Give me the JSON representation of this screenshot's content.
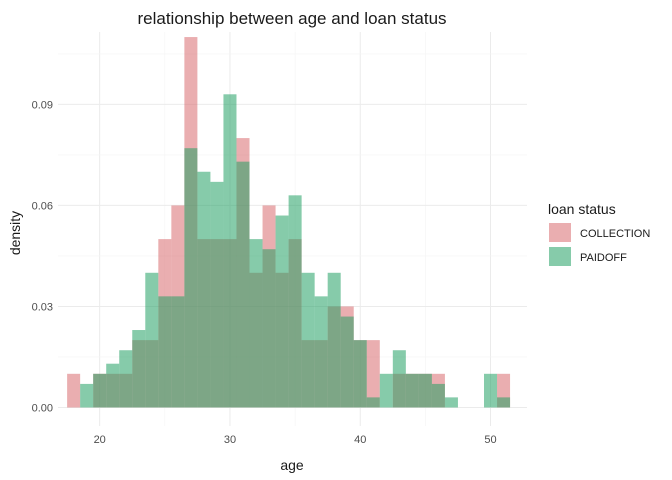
{
  "chart_data": {
    "type": "histogram",
    "title": "relationship between age and loan status",
    "xlabel": "age",
    "ylabel": "density",
    "xlim": [
      16.8,
      52.8
    ],
    "ylim": [
      -0.0055,
      0.1115
    ],
    "xticks": [
      20,
      30,
      40,
      50
    ],
    "yticks": [
      0.0,
      0.03,
      0.06,
      0.09
    ],
    "xtick_labels": [
      "20",
      "30",
      "40",
      "50"
    ],
    "ytick_labels": [
      "0.00",
      "0.03",
      "0.06",
      "0.09"
    ],
    "bin_start": 17.5,
    "bin_width": 1,
    "legend": {
      "title": "loan status",
      "position": "right",
      "entries": [
        "COLLECTION",
        "PAIDOFF"
      ]
    },
    "series": [
      {
        "name": "COLLECTION",
        "color": "#d96b6f",
        "opacity": 0.55,
        "values": [
          0.01,
          0.0,
          0.01,
          0.01,
          0.01,
          0.02,
          0.02,
          0.05,
          0.06,
          0.11,
          0.05,
          0.05,
          0.05,
          0.08,
          0.04,
          0.06,
          0.04,
          0.05,
          0.02,
          0.02,
          0.03,
          0.03,
          0.02,
          0.02,
          0.0,
          0.01,
          0.01,
          0.01,
          0.01,
          0.0,
          0.0,
          0.0,
          0.0,
          0.01
        ]
      },
      {
        "name": "PAIDOFF",
        "color": "#22a065",
        "opacity": 0.55,
        "values": [
          0.0,
          0.007,
          0.01,
          0.013,
          0.017,
          0.023,
          0.04,
          0.033,
          0.033,
          0.077,
          0.07,
          0.067,
          0.093,
          0.073,
          0.05,
          0.047,
          0.057,
          0.063,
          0.04,
          0.033,
          0.04,
          0.027,
          0.02,
          0.003,
          0.01,
          0.017,
          0.01,
          0.01,
          0.007,
          0.003,
          0.0,
          0.0,
          0.01,
          0.003
        ]
      }
    ]
  }
}
